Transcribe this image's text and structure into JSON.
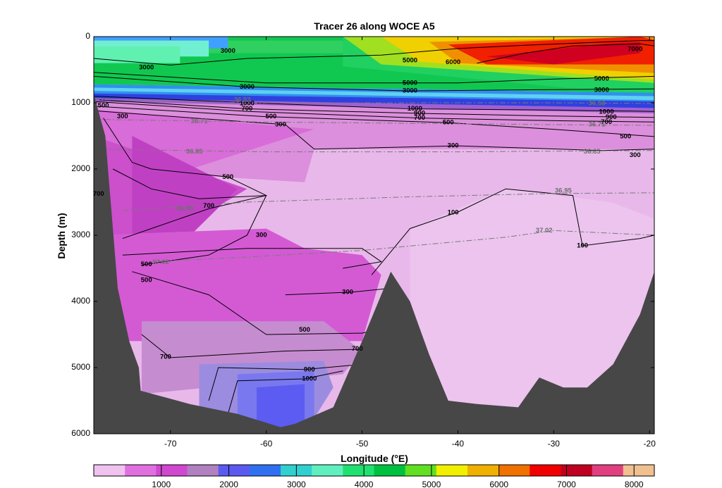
{
  "chart_data": {
    "type": "heatmap",
    "title": "Tracer 26 along WOCE A5",
    "xlabel": "Longitude (°E)",
    "ylabel": "Depth (m)",
    "xlim": [
      -78,
      -19.5
    ],
    "ylim": [
      6000,
      0
    ],
    "x_ticks": [
      -70,
      -60,
      -50,
      -40,
      -30,
      -20
    ],
    "y_ticks": [
      0,
      1000,
      2000,
      3000,
      4000,
      5000,
      6000
    ],
    "colorbar": {
      "range": [
        0,
        8300
      ],
      "ticks": [
        1000,
        2000,
        3000,
        4000,
        5000,
        6000,
        7000,
        8000
      ],
      "colors": [
        "#f0c2f0",
        "#e070e0",
        "#d048d0",
        "#b080c0",
        "#5a5af0",
        "#3070f0",
        "#30d0d0",
        "#60f0c0",
        "#20e070",
        "#00c040",
        "#60e020",
        "#f0f000",
        "#f0b000",
        "#f07000",
        "#f00000",
        "#c00020",
        "#e04080",
        "#f0c090"
      ]
    },
    "contour_labels": [
      {
        "text": "3000",
        "x": -64,
        "y": 220
      },
      {
        "text": "3000",
        "x": -72.5,
        "y": 470
      },
      {
        "text": "3000",
        "x": -62,
        "y": 760
      },
      {
        "text": "5000",
        "x": -45,
        "y": 360
      },
      {
        "text": "6000",
        "x": -40.5,
        "y": 390
      },
      {
        "text": "7000",
        "x": -21.5,
        "y": 190
      },
      {
        "text": "5000",
        "x": -45,
        "y": 700
      },
      {
        "text": "3000",
        "x": -45,
        "y": 820
      },
      {
        "text": "5000",
        "x": -25,
        "y": 640
      },
      {
        "text": "3000",
        "x": -25,
        "y": 810
      },
      {
        "text": "1000",
        "x": -62,
        "y": 1010
      },
      {
        "text": "700",
        "x": -62,
        "y": 1090
      },
      {
        "text": "500",
        "x": -59.5,
        "y": 1210
      },
      {
        "text": "300",
        "x": -58.5,
        "y": 1330
      },
      {
        "text": "1000",
        "x": -44.5,
        "y": 1090
      },
      {
        "text": "900",
        "x": -44,
        "y": 1160
      },
      {
        "text": "700",
        "x": -44,
        "y": 1230
      },
      {
        "text": "500",
        "x": -41,
        "y": 1300
      },
      {
        "text": "300",
        "x": -40.5,
        "y": 1650
      },
      {
        "text": "1000",
        "x": -24.5,
        "y": 1140
      },
      {
        "text": "900",
        "x": -24,
        "y": 1220
      },
      {
        "text": "700",
        "x": -24.5,
        "y": 1290
      },
      {
        "text": "500",
        "x": -22.5,
        "y": 1510
      },
      {
        "text": "300",
        "x": -21.5,
        "y": 1790
      },
      {
        "text": "500",
        "x": -77,
        "y": 1040
      },
      {
        "text": "300",
        "x": -75,
        "y": 1210
      },
      {
        "text": "700",
        "x": -77.5,
        "y": 2380
      },
      {
        "text": "500",
        "x": -64,
        "y": 2120
      },
      {
        "text": "700",
        "x": -66,
        "y": 2560
      },
      {
        "text": "300",
        "x": -60.5,
        "y": 3000
      },
      {
        "text": "100",
        "x": -40.5,
        "y": 2660
      },
      {
        "text": "100",
        "x": -27,
        "y": 3160
      },
      {
        "text": "500",
        "x": -72.5,
        "y": 3440
      },
      {
        "text": "500",
        "x": -72.5,
        "y": 3680
      },
      {
        "text": "300",
        "x": -51.5,
        "y": 3860
      },
      {
        "text": "500",
        "x": -56,
        "y": 4430
      },
      {
        "text": "700",
        "x": -50.5,
        "y": 4720
      },
      {
        "text": "700",
        "x": -70.5,
        "y": 4840
      },
      {
        "text": "900",
        "x": -55.5,
        "y": 5030
      },
      {
        "text": "1000",
        "x": -55.5,
        "y": 5170
      }
    ],
    "density_labels": [
      {
        "text": "36.53",
        "x": -62.5,
        "y": 960
      },
      {
        "text": "36.71",
        "x": -67,
        "y": 1280
      },
      {
        "text": "36.53",
        "x": -25.5,
        "y": 1010
      },
      {
        "text": "36.71",
        "x": -25.5,
        "y": 1330
      },
      {
        "text": "36.85",
        "x": -67.5,
        "y": 1740
      },
      {
        "text": "36.85",
        "x": -26,
        "y": 1740
      },
      {
        "text": "36.95",
        "x": -68.5,
        "y": 2600
      },
      {
        "text": "36.95",
        "x": -29,
        "y": 2330
      },
      {
        "text": "37.02",
        "x": -71,
        "y": 3410
      },
      {
        "text": "37.02",
        "x": -31,
        "y": 2930
      }
    ]
  }
}
